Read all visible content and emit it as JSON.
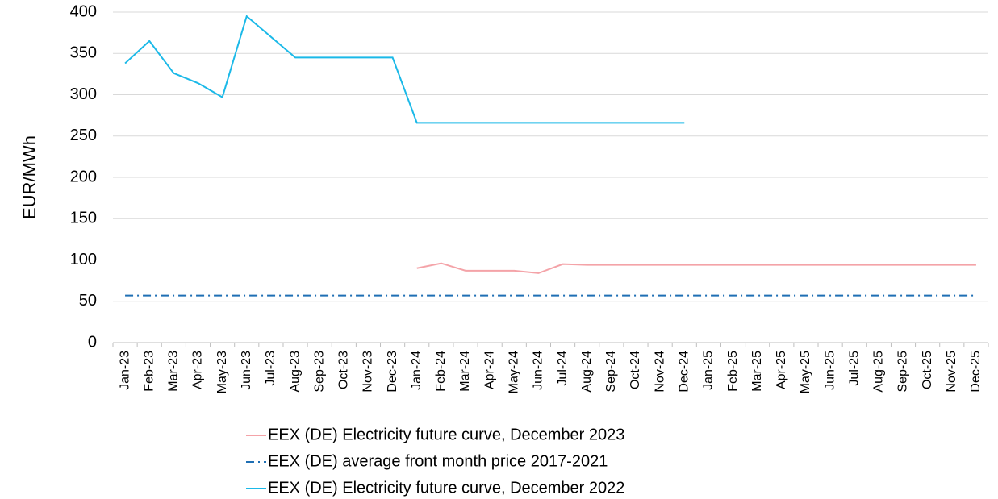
{
  "chart_data": {
    "type": "line",
    "y_label": "EUR/MWh",
    "categories": [
      "Jan-23",
      "Feb-23",
      "Mar-23",
      "Apr-23",
      "May-23",
      "Jun-23",
      "Jul-23",
      "Aug-23",
      "Sep-23",
      "Oct-23",
      "Nov-23",
      "Dec-23",
      "Jan-24",
      "Feb-24",
      "Mar-24",
      "Apr-24",
      "May-24",
      "Jun-24",
      "Jul-24",
      "Aug-24",
      "Sep-24",
      "Oct-24",
      "Nov-24",
      "Dec-24",
      "Jan-25",
      "Feb-25",
      "Mar-25",
      "Apr-25",
      "May-25",
      "Jun-25",
      "Jul-25",
      "Aug-25",
      "Sep-25",
      "Oct-25",
      "Nov-25",
      "Dec-25"
    ],
    "series": [
      {
        "name": "EEX (DE) Electricity future curve, December 2023",
        "color": "#f4a3a8",
        "dash": "solid",
        "values": [
          null,
          null,
          null,
          null,
          null,
          null,
          null,
          null,
          null,
          null,
          null,
          null,
          90,
          96,
          87,
          87,
          87,
          84,
          95,
          94,
          94,
          94,
          94,
          94,
          94,
          94,
          94,
          94,
          94,
          94,
          94,
          94,
          94,
          94,
          94,
          94
        ]
      },
      {
        "name": "EEX (DE) average front month price 2017-2021",
        "color": "#1f6fb4",
        "dash": "dash-dot",
        "values": [
          57,
          57,
          57,
          57,
          57,
          57,
          57,
          57,
          57,
          57,
          57,
          57,
          57,
          57,
          57,
          57,
          57,
          57,
          57,
          57,
          57,
          57,
          57,
          57,
          57,
          57,
          57,
          57,
          57,
          57,
          57,
          57,
          57,
          57,
          57,
          57
        ]
      },
      {
        "name": "EEX (DE) Electricity future curve, December 2022",
        "color": "#1bb9e8",
        "dash": "solid",
        "values": [
          338,
          365,
          326,
          314,
          297,
          395,
          370,
          345,
          345,
          345,
          345,
          345,
          266,
          266,
          266,
          266,
          266,
          266,
          266,
          266,
          266,
          266,
          266,
          266,
          null,
          null,
          null,
          null,
          null,
          null,
          null,
          null,
          null,
          null,
          null,
          null
        ]
      }
    ],
    "ylim": [
      0,
      400
    ],
    "yticks": [
      0,
      50,
      100,
      150,
      200,
      250,
      300,
      350,
      400
    ],
    "grid": true
  }
}
